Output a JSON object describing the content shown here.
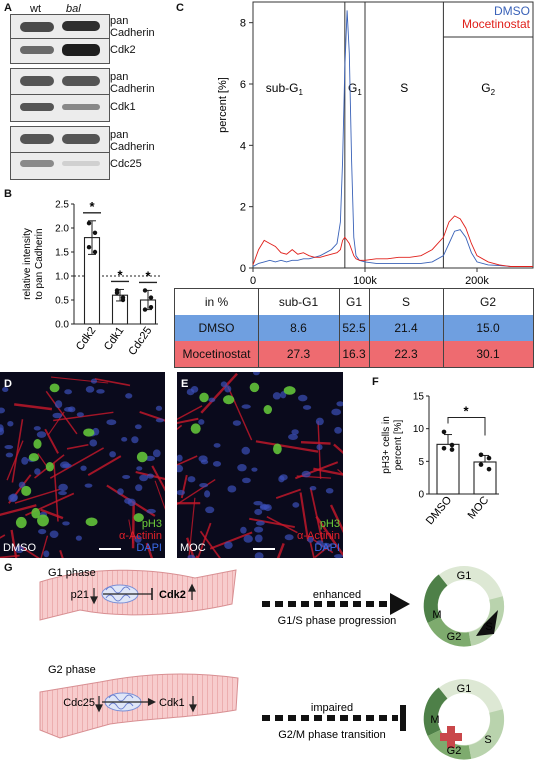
{
  "panels": {
    "A": "A",
    "B": "B",
    "C": "C",
    "D": "D",
    "E": "E",
    "F": "F",
    "G": "G"
  },
  "panel_a": {
    "col_wt": "wt",
    "col_bal": "bal",
    "blots": [
      {
        "label": "pan\nCadherin",
        "name": "pan-cadherin-1"
      },
      {
        "label": "Cdk2",
        "name": "cdk2"
      },
      {
        "label": "pan\nCadherin",
        "name": "pan-cadherin-2"
      },
      {
        "label": "Cdk1",
        "name": "cdk1"
      },
      {
        "label": "pan\nCadherin",
        "name": "pan-cadherin-3"
      },
      {
        "label": "Cdc25",
        "name": "cdc25"
      }
    ]
  },
  "chart_data": [
    {
      "type": "bar",
      "panel": "B",
      "ylabel": "relative intensity\nto pan Cadherin",
      "categories": [
        "Cdk2",
        "Cdk1",
        "Cdc25"
      ],
      "values": [
        1.8,
        0.6,
        0.5
      ],
      "errors": [
        0.35,
        0.12,
        0.2
      ],
      "points": [
        [
          2.1,
          1.9,
          1.6,
          1.5
        ],
        [
          0.65,
          0.55,
          0.7,
          0.5
        ],
        [
          0.7,
          0.35,
          0.3,
          0.55
        ]
      ],
      "ylim": [
        0,
        2.5
      ],
      "yticks": [
        "0.0",
        "0.5",
        "1.0",
        "1.5",
        "2.0",
        "2.5"
      ],
      "reference_line": 1.0,
      "significance": [
        "*",
        "*",
        "*"
      ]
    },
    {
      "type": "line",
      "panel": "C",
      "ylabel": "percent [%]",
      "ylim": [
        0,
        9
      ],
      "yticks": [
        "0",
        "2",
        "4",
        "6",
        "8"
      ],
      "xticks": [
        "0",
        "100k",
        "200k"
      ],
      "regions": [
        "sub-G1",
        "G1",
        "S",
        "G2"
      ],
      "series": [
        {
          "name": "DMSO",
          "color": "#3a62b8",
          "x": [
            0,
            5,
            10,
            15,
            20,
            25,
            30,
            35,
            40,
            45,
            50,
            55,
            60,
            65,
            70,
            75,
            78,
            80,
            82,
            84,
            86,
            88,
            90,
            92,
            95,
            100,
            110,
            120,
            130,
            140,
            150,
            160,
            170,
            175,
            180,
            185,
            190,
            195,
            200,
            210,
            220,
            230,
            240,
            250
          ],
          "y": [
            0.05,
            0.15,
            0.2,
            0.25,
            0.2,
            0.25,
            0.2,
            0.25,
            0.25,
            0.3,
            0.3,
            0.35,
            0.4,
            0.5,
            0.6,
            0.8,
            1.5,
            3.5,
            6.5,
            8.4,
            7.0,
            3.5,
            1.0,
            0.4,
            0.25,
            0.2,
            0.15,
            0.15,
            0.15,
            0.15,
            0.15,
            0.2,
            0.4,
            0.8,
            1.2,
            1.25,
            1.0,
            0.5,
            0.2,
            0.1,
            0.08,
            0.05,
            0.05,
            0.05
          ]
        },
        {
          "name": "Mocetinostat",
          "color": "#e0201b",
          "x": [
            0,
            5,
            10,
            15,
            20,
            25,
            30,
            35,
            40,
            45,
            50,
            55,
            60,
            65,
            70,
            75,
            78,
            80,
            82,
            84,
            86,
            88,
            90,
            92,
            95,
            100,
            110,
            120,
            130,
            140,
            150,
            160,
            170,
            175,
            180,
            185,
            190,
            195,
            200,
            210,
            220,
            230,
            240,
            250
          ],
          "y": [
            0.1,
            0.6,
            0.9,
            0.8,
            0.7,
            0.5,
            0.45,
            0.6,
            0.45,
            0.5,
            0.4,
            0.35,
            0.35,
            0.4,
            0.45,
            0.5,
            0.6,
            0.9,
            1.0,
            0.9,
            0.8,
            0.6,
            0.4,
            0.3,
            0.25,
            0.25,
            0.3,
            0.3,
            0.35,
            0.35,
            0.4,
            0.6,
            1.0,
            1.5,
            1.7,
            1.6,
            1.3,
            0.8,
            0.4,
            0.2,
            0.1,
            0.05,
            0.05,
            0.05
          ]
        }
      ]
    },
    {
      "type": "bar",
      "panel": "F",
      "ylabel": "pH3+ cells in\npercent [%]",
      "categories": [
        "DMSO",
        "MOC"
      ],
      "values": [
        7.6,
        4.9
      ],
      "errors": [
        1.5,
        1.0
      ],
      "points": [
        [
          9.5,
          7.5,
          7.0,
          6.8
        ],
        [
          6.0,
          5.5,
          4.5,
          3.8
        ]
      ],
      "ylim": [
        0,
        15
      ],
      "yticks": [
        "0",
        "5",
        "10",
        "15"
      ],
      "significance": "*"
    }
  ],
  "table_c": {
    "header": [
      "in %",
      "sub-G1",
      "G1",
      "S",
      "G2"
    ],
    "rows": [
      {
        "label": "DMSO",
        "values": [
          "8.6",
          "52.5",
          "21.4",
          "15.0"
        ],
        "color": "#6f9fe0"
      },
      {
        "label": "Mocetinostat",
        "values": [
          "27.3",
          "16.3",
          "22.3",
          "30.1"
        ],
        "color": "#ee6b70"
      }
    ]
  },
  "micrographs": [
    {
      "label": "DMSO",
      "channels": [
        "pH3",
        "α-Actinin",
        "DAPI"
      ]
    },
    {
      "label": "MOC",
      "channels": [
        "pH3",
        "α-Actinin",
        "DAPI"
      ]
    }
  ],
  "panel_g": {
    "g1_title": "G1 phase",
    "g2_title": "G2 phase",
    "g1_left": "p21",
    "g1_right": "Cdk2",
    "g2_left": "Cdc25",
    "g2_right": "Cdk1",
    "g1_arrow_top": "enhanced",
    "g1_arrow_bottom": "G1/S phase progression",
    "g2_arrow_top": "impaired",
    "g2_arrow_bottom": "G2/M phase transition",
    "cycle_labels": [
      "G1",
      "M",
      "G2",
      "S"
    ]
  },
  "colors": {
    "dmso": "#3a62b8",
    "moc": "#e0201b",
    "ph3": "#6fcf3a",
    "actinin": "#e0202a",
    "dapi": "#3355d8"
  }
}
